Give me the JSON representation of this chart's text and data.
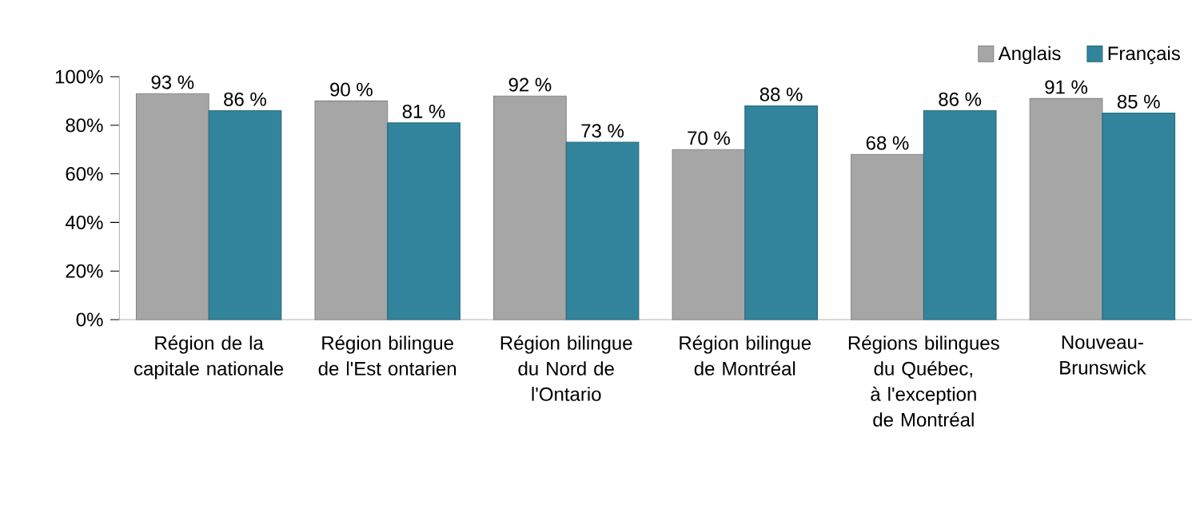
{
  "chart_data": {
    "type": "bar",
    "categories": [
      "Région de la capitale nationale",
      "Région bilingue de l'Est ontarien",
      "Région bilingue du Nord de l'Ontario",
      "Région bilingue de Montréal",
      "Régions bilingues du Québec, à l'exception de Montréal",
      "Nouveau-Brunswick"
    ],
    "series": [
      {
        "name": "Anglais",
        "color": "#a6a6a6",
        "values": [
          93,
          90,
          92,
          70,
          68,
          91
        ],
        "value_labels": [
          "93 %",
          "90 %",
          "92 %",
          "70 %",
          "68 %",
          "91 %"
        ]
      },
      {
        "name": "Français",
        "color": "#31849b",
        "values": [
          86,
          81,
          73,
          88,
          86,
          85
        ],
        "value_labels": [
          "86 %",
          "81 %",
          "73 %",
          "88 %",
          "86 %",
          "85 %"
        ]
      }
    ],
    "ylim": [
      0,
      100
    ],
    "yticks": [
      {
        "value": 0,
        "label": "0%"
      },
      {
        "value": 20,
        "label": "20%"
      },
      {
        "value": 40,
        "label": "40%"
      },
      {
        "value": 60,
        "label": "60%"
      },
      {
        "value": 80,
        "label": "80%"
      },
      {
        "value": 100,
        "label": "100%"
      }
    ],
    "grid": false,
    "legend": "top right"
  }
}
